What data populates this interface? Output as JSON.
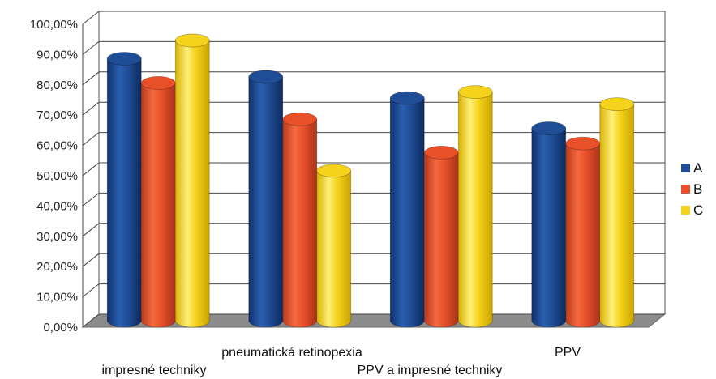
{
  "chart_data": {
    "type": "bar",
    "title": "",
    "xlabel": "",
    "ylabel": "",
    "categories": [
      "impresné techniky",
      "pneumatická retinopexia",
      "PPV a impresné techniky",
      "PPV"
    ],
    "series": [
      {
        "name": "A",
        "values": [
          86.5,
          80.5,
          73.5,
          63.5
        ]
      },
      {
        "name": "B",
        "values": [
          78.5,
          66.5,
          55.5,
          58.5
        ]
      },
      {
        "name": "C",
        "values": [
          92.5,
          49.5,
          75.5,
          71.5
        ]
      }
    ],
    "ylim": [
      0,
      100
    ],
    "yticks": [
      "0,00%",
      "10,00%",
      "20,00%",
      "30,00%",
      "40,00%",
      "50,00%",
      "60,00%",
      "70,00%",
      "80,00%",
      "90,00%",
      "100,00%"
    ],
    "legend_position": "right",
    "grid": true,
    "style": "3d-cylinder",
    "colors": {
      "A": "#1f4e96",
      "B": "#e8502a",
      "C": "#f5d21c"
    }
  }
}
